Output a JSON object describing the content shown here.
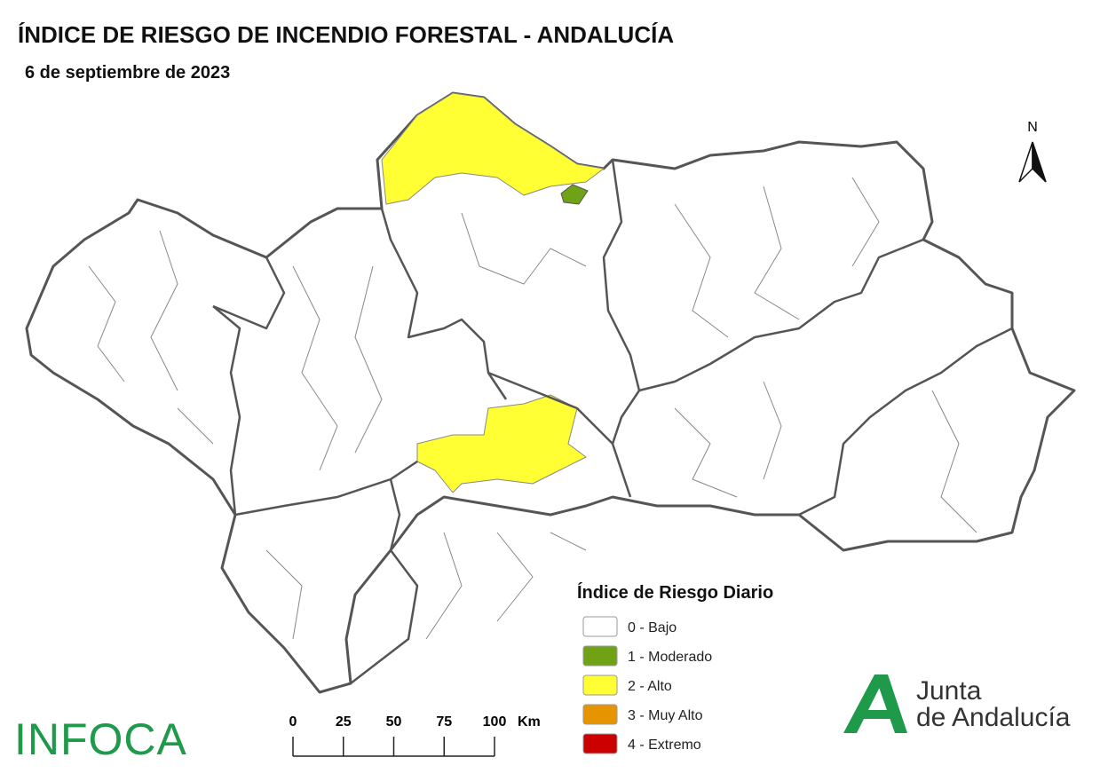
{
  "header": {
    "title": "ÍNDICE DE RIESGO DE INCENDIO FORESTAL - ANDALUCÍA",
    "subtitle": "6 de septiembre de 2023"
  },
  "north": "N",
  "legend": {
    "title": "Índice de Riesgo Diario",
    "items": [
      {
        "label": "0 - Bajo",
        "color": "#ffffff"
      },
      {
        "label": "1 - Moderado",
        "color": "#6fa214"
      },
      {
        "label": "2 - Alto",
        "color": "#ffff33"
      },
      {
        "label": "3 - Muy Alto",
        "color": "#e69500"
      },
      {
        "label": "4 - Extremo",
        "color": "#cc0000"
      }
    ]
  },
  "scale": {
    "ticks": [
      0,
      25,
      50,
      75,
      100
    ],
    "unit": "Km"
  },
  "logos": {
    "infoca": "INFOCA",
    "junta_line1": "Junta",
    "junta_line2": "de Andalucía"
  }
}
